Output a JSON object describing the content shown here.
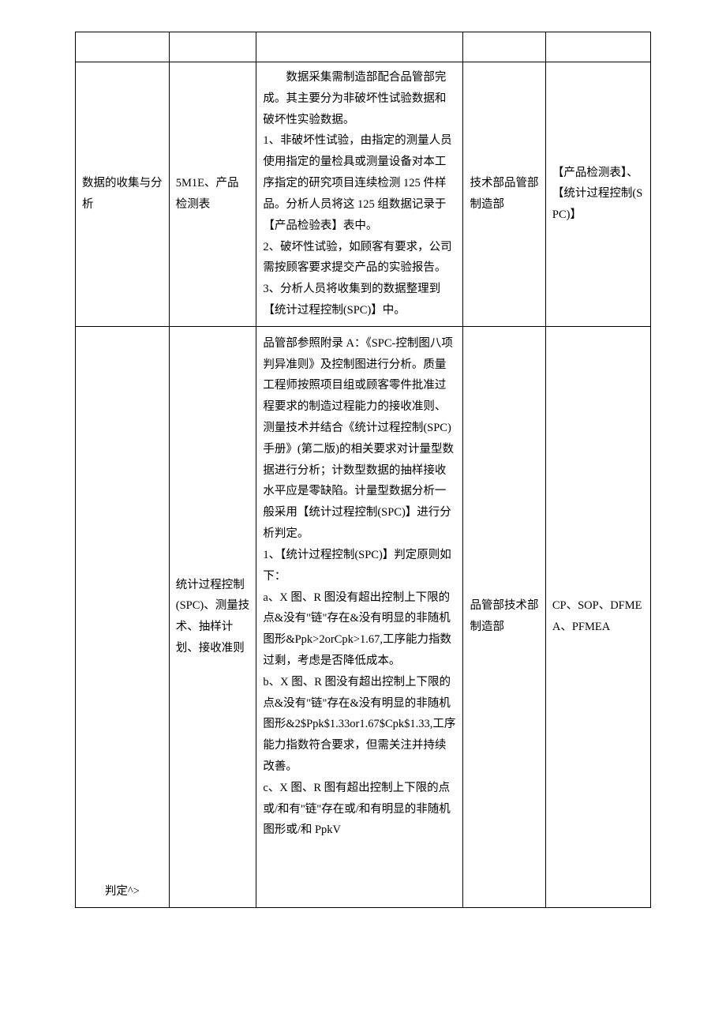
{
  "table": {
    "rows": [
      {
        "col1": "",
        "col2": "",
        "col3": "",
        "col4": "",
        "col5": ""
      },
      {
        "col1": "数据的收集与分析",
        "col2": "5M1E、产品检测表",
        "col3_para1_indent": "数据采集需制造部配合品管部完成。其主要分为非破坏性试验数据和破坏性实验数据。",
        "col3_para2": "1、非破坏性试验，由指定的测量人员使用指定的量检具或测量设备对本工序指定的研究项目连续检测 125 件样品。分析人员将这 125 组数据记录于【产品检验表】表中。",
        "col3_para3": "2、破坏性试验，如顾客有要求，公司需按顾客要求提交产品的实验报告。",
        "col3_para4": "3、分析人员将收集到的数据整理到【统计过程控制(SPC)】中。",
        "col4": "技术部品管部制造部",
        "col5": "【产品检测表】、【统计过程控制(SPC)】"
      },
      {
        "col1": "判定^>",
        "col2": "统计过程控制(SPC)、测量技术、抽样计划、接收准则",
        "col3_p1": "品管部参照附录 A：《SPC-控制图八项判异准则》及控制图进行分析。质量工程师按照项目组或顾客零件批准过程要求的制造过程能力的接收准则、测量技术并结合《统计过程控制(SPC)手册》(第二版)的相关要求对计量型数据进行分析；计数型数据的抽样接收水平应是零缺陷。计量型数据分析一般采用【统计过程控制(SPC)】进行分析判定。",
        "col3_p2": "1、【统计过程控制(SPC)】判定原则如下：",
        "col3_p3": "a、X 图、R 图没有超出控制上下限的点&没有\"链\"存在&没有明显的非随机图形&Ppk>2orCpk>1.67,工序能力指数过剩，考虑是否降低成本。",
        "col3_p4": "b、X 图、R 图没有超出控制上下限的点&没有\"链\"存在&没有明显的非随机图形&2$Ppk$1.33or1.67$Cpk$1.33,工序能力指数符合要求，但需关注并持续改善。",
        "col3_p5": "c、X 图、R 图有超出控制上下限的点或/和有\"链\"存在或/和有明显的非随机图形或/和 PpkV",
        "col4": "品管部技术部制造部",
        "col5": "CP、SOP、DFMEA、PFMEA"
      }
    ]
  }
}
